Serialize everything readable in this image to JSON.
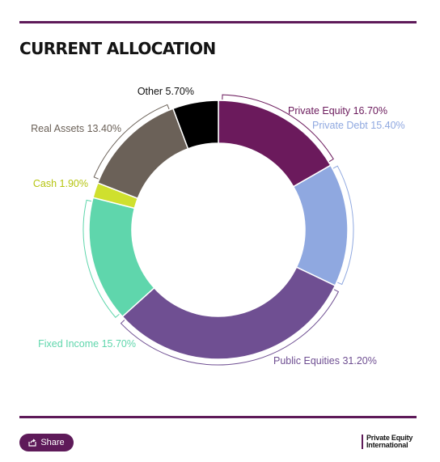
{
  "header": {
    "title": "CURRENT ALLOCATION"
  },
  "chart_data": {
    "type": "pie",
    "variant": "donut",
    "slices": [
      {
        "label": "Private Equity 16.70%",
        "value": 16.7,
        "color": "#6b1a5c"
      },
      {
        "label": "Private Debt 15.40%",
        "value": 15.4,
        "color": "#8fa8e0"
      },
      {
        "label": "Public Equities 31.20%",
        "value": 31.2,
        "color": "#6f4f92"
      },
      {
        "label": "Fixed Income 15.70%",
        "value": 15.7,
        "color": "#5fd6ac"
      },
      {
        "label": "Cash 1.90%",
        "value": 1.9,
        "color": "#cfe02e"
      },
      {
        "label": "Real Assets 13.40%",
        "value": 13.4,
        "color": "#6b6158"
      },
      {
        "label": "Other 5.70%",
        "value": 5.7,
        "color": "#000000"
      }
    ]
  },
  "footer": {
    "share_label": "Share",
    "brand_line1": "Private Equity",
    "brand_line2": "International"
  }
}
